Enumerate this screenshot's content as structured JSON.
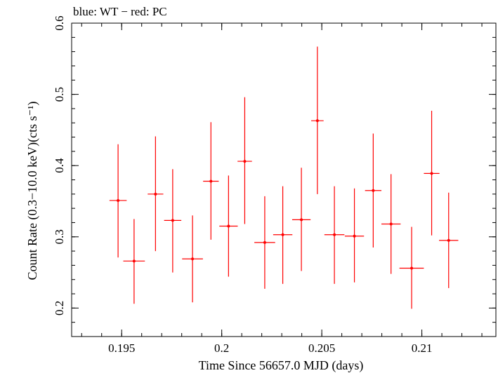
{
  "chart_data": {
    "type": "scatter",
    "title": "blue: WT − red: PC",
    "xlabel": "Time Since 56657.0 MJD (days)",
    "ylabel": "Count Rate (0.3−10.0 keV)(cts s⁻¹)",
    "xlim": [
      0.1925,
      0.2137
    ],
    "ylim": [
      0.16,
      0.6
    ],
    "x_ticks": [
      {
        "value": 0.195,
        "label": "0.195"
      },
      {
        "value": 0.2,
        "label": "0.2"
      },
      {
        "value": 0.205,
        "label": "0.205"
      },
      {
        "value": 0.21,
        "label": "0.21"
      }
    ],
    "y_ticks": [
      {
        "value": 0.2,
        "label": "0.2"
      },
      {
        "value": 0.3,
        "label": "0.3"
      },
      {
        "value": 0.4,
        "label": "0.4"
      },
      {
        "value": 0.5,
        "label": "0.5"
      },
      {
        "value": 0.6,
        "label": "0.6"
      }
    ],
    "x_minor_step": 0.001,
    "y_minor_step": 0.02,
    "grid": false,
    "series": [
      {
        "name": "PC",
        "color": "#ff0000",
        "points": [
          {
            "x": 0.19482,
            "xerr": 0.00043,
            "y": 0.351,
            "ylo": 0.271,
            "yhi": 0.43
          },
          {
            "x": 0.19562,
            "xerr": 0.00054,
            "y": 0.266,
            "ylo": 0.206,
            "yhi": 0.325
          },
          {
            "x": 0.19669,
            "xerr": 0.00039,
            "y": 0.36,
            "ylo": 0.28,
            "yhi": 0.441
          },
          {
            "x": 0.19755,
            "xerr": 0.00043,
            "y": 0.323,
            "ylo": 0.25,
            "yhi": 0.395
          },
          {
            "x": 0.19854,
            "xerr": 0.00052,
            "y": 0.269,
            "ylo": 0.208,
            "yhi": 0.33
          },
          {
            "x": 0.19946,
            "xerr": 0.00039,
            "y": 0.378,
            "ylo": 0.296,
            "yhi": 0.461
          },
          {
            "x": 0.20034,
            "xerr": 0.00046,
            "y": 0.315,
            "ylo": 0.244,
            "yhi": 0.386
          },
          {
            "x": 0.20115,
            "xerr": 0.00036,
            "y": 0.406,
            "ylo": 0.318,
            "yhi": 0.496
          },
          {
            "x": 0.20215,
            "xerr": 0.00052,
            "y": 0.292,
            "ylo": 0.227,
            "yhi": 0.357
          },
          {
            "x": 0.20305,
            "xerr": 0.00048,
            "y": 0.303,
            "ylo": 0.234,
            "yhi": 0.371
          },
          {
            "x": 0.20398,
            "xerr": 0.00046,
            "y": 0.324,
            "ylo": 0.252,
            "yhi": 0.397
          },
          {
            "x": 0.20478,
            "xerr": 0.00031,
            "y": 0.463,
            "ylo": 0.36,
            "yhi": 0.567
          },
          {
            "x": 0.20563,
            "xerr": 0.0005,
            "y": 0.303,
            "ylo": 0.234,
            "yhi": 0.371
          },
          {
            "x": 0.20663,
            "xerr": 0.00048,
            "y": 0.301,
            "ylo": 0.236,
            "yhi": 0.368
          },
          {
            "x": 0.20757,
            "xerr": 0.00041,
            "y": 0.365,
            "ylo": 0.285,
            "yhi": 0.445
          },
          {
            "x": 0.20846,
            "xerr": 0.00048,
            "y": 0.318,
            "ylo": 0.248,
            "yhi": 0.388
          },
          {
            "x": 0.20949,
            "xerr": 0.00061,
            "y": 0.256,
            "ylo": 0.199,
            "yhi": 0.314
          },
          {
            "x": 0.21049,
            "xerr": 0.00039,
            "y": 0.389,
            "ylo": 0.302,
            "yhi": 0.477
          },
          {
            "x": 0.21134,
            "xerr": 0.00048,
            "y": 0.295,
            "ylo": 0.228,
            "yhi": 0.362
          }
        ]
      }
    ]
  }
}
